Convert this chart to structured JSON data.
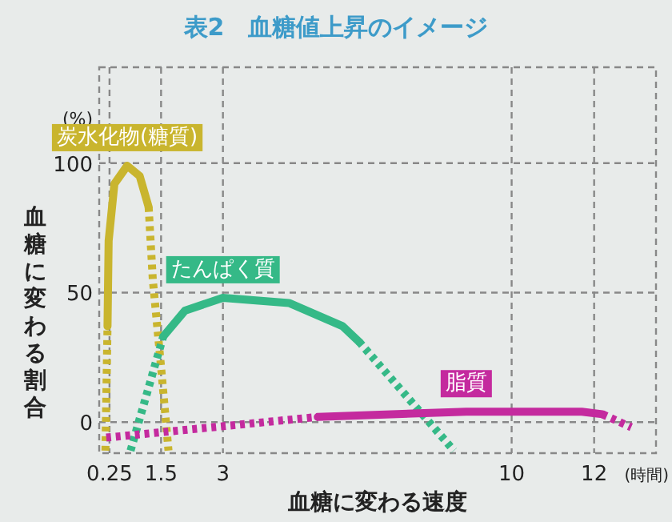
{
  "chart_data": {
    "type": "line",
    "title": "表2　血糖値上昇のイメージ",
    "xlabel": "血糖に変わる速度",
    "ylabel": "血糖に変わる割合",
    "annotations": [
      "(%)",
      "(時間)"
    ],
    "xlim": [
      0,
      13.5
    ],
    "xticks": [
      0.25,
      1.5,
      3,
      10,
      12
    ],
    "ylim": [
      -12,
      137
    ],
    "yticks": [
      0,
      50,
      100
    ],
    "grid": true,
    "marker": "none",
    "series": [
      {
        "name": "炭水化物(糖質)",
        "color": "#c9b52e",
        "line_style": "solid",
        "x": [
          0.2,
          0.23,
          0.37,
          0.68,
          0.98,
          1.2
        ],
        "values": [
          37,
          70,
          92,
          99,
          95,
          83
        ]
      },
      {
        "color": "#c9b52e",
        "line_style": "dotted",
        "x": [
          0.15,
          0.18,
          0.2
        ],
        "values": [
          -11,
          15,
          37
        ]
      },
      {
        "color": "#c9b52e",
        "line_style": "dotted",
        "x": [
          1.2,
          1.3,
          1.5,
          1.68
        ],
        "values": [
          83,
          55,
          21,
          -11
        ]
      },
      {
        "name": "たんぱく質",
        "color": "#35b987",
        "line_style": "solid",
        "x": [
          1.55,
          2.08,
          3,
          4.6,
          5.9,
          6.3
        ],
        "values": [
          33,
          43,
          48,
          46,
          37,
          31
        ]
      },
      {
        "color": "#35b987",
        "line_style": "dotted",
        "x": [
          0.76,
          1.55
        ],
        "values": [
          -11,
          33
        ]
      },
      {
        "color": "#35b987",
        "line_style": "dotted",
        "x": [
          6.3,
          8.6
        ],
        "values": [
          31,
          -11
        ]
      },
      {
        "name": "脂質",
        "color": "#c42a9e",
        "line_style": "solid",
        "x": [
          5.3,
          8.9,
          11.7,
          12.2
        ],
        "values": [
          2,
          4,
          4,
          3
        ]
      },
      {
        "color": "#c42a9e",
        "line_style": "dotted",
        "x": [
          0.17,
          5.3
        ],
        "values": [
          -6,
          2
        ]
      },
      {
        "color": "#c42a9e",
        "line_style": "dotted",
        "x": [
          12.2,
          12.9
        ],
        "values": [
          3,
          -2
        ]
      }
    ]
  }
}
